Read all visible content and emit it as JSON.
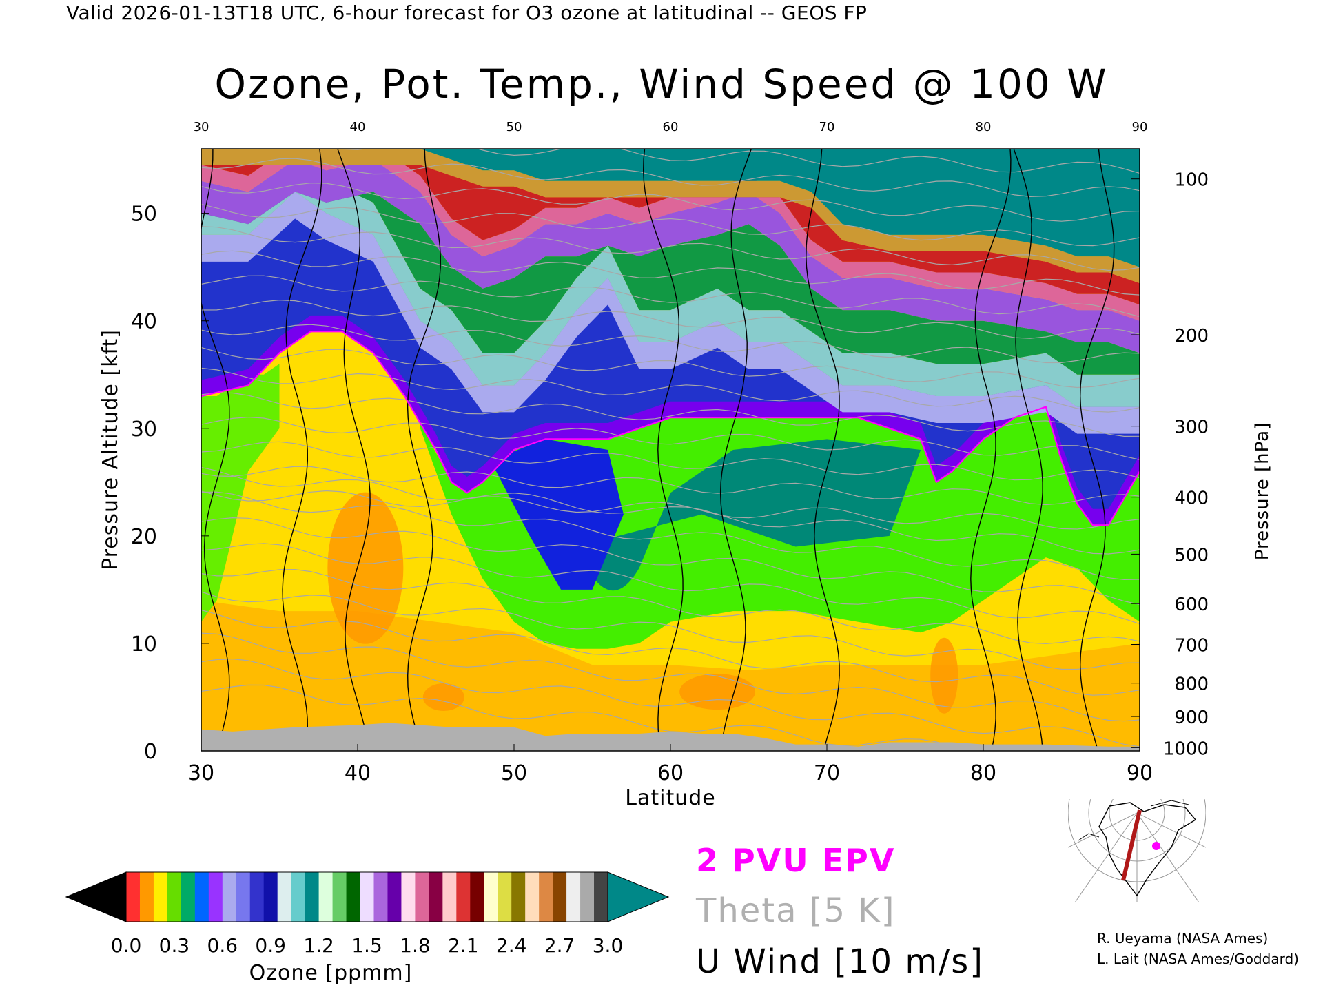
{
  "header": "Valid 2026-01-13T18 UTC, 6-hour forecast for O3 ozone at latitudinal -- GEOS FP",
  "title": "Ozone, Pot. Temp., Wind Speed @ 100 W",
  "legend": {
    "epv": "2 PVU EPV",
    "theta": "Theta [5 K]",
    "wind": "U Wind [10 m/s]"
  },
  "colorbar": {
    "label": "Ozone [ppmm]",
    "ticks": [
      "0.0",
      "0.3",
      "0.6",
      "0.9",
      "1.2",
      "1.5",
      "1.8",
      "2.1",
      "2.4",
      "2.7",
      "3.0"
    ],
    "colors": [
      "#000000",
      "#ff3030",
      "#ff9900",
      "#ffee00",
      "#66dd00",
      "#00aa66",
      "#0066ff",
      "#9933ff",
      "#aaaaee",
      "#7777ee",
      "#3333cc",
      "#1111aa",
      "#ddeeee",
      "#66cccc",
      "#008888",
      "#ddffdd",
      "#66cc66",
      "#006600",
      "#eeddff",
      "#aa66dd",
      "#6600aa",
      "#ffddee",
      "#dd6699",
      "#880044",
      "#ffcccc",
      "#dd3333",
      "#770000",
      "#ffffcc",
      "#dddd44",
      "#887700",
      "#ffddbb",
      "#dd8844",
      "#884400",
      "#eeeeee",
      "#aaaaaa",
      "#444444",
      "#008888"
    ]
  },
  "credits": [
    "R. Ueyama (NASA Ames)",
    "L. Lait (NASA Ames/Goddard)"
  ],
  "chart_data": {
    "type": "heatmap",
    "xlabel": "Latitude",
    "ylabel": "Pressure Altitude [kft]",
    "ylabel_right": "Pressure [hPa]",
    "xlim": [
      30,
      90
    ],
    "ylim": [
      0,
      56
    ],
    "x_ticks": [
      "30",
      "40",
      "50",
      "60",
      "70",
      "80",
      "90"
    ],
    "y_ticks": [
      "0",
      "10",
      "20",
      "30",
      "40",
      "50"
    ],
    "pressure_ticks": [
      {
        "label": "100",
        "kft": 53.2
      },
      {
        "label": "200",
        "kft": 38.7
      },
      {
        "label": "300",
        "kft": 30.2
      },
      {
        "label": "400",
        "kft": 23.6
      },
      {
        "label": "500",
        "kft": 18.3
      },
      {
        "label": "600",
        "kft": 13.7
      },
      {
        "label": "700",
        "kft": 9.9
      },
      {
        "label": "800",
        "kft": 6.3
      },
      {
        "label": "900",
        "kft": 3.2
      },
      {
        "label": "1000",
        "kft": 0.3
      }
    ],
    "tropopause_2pvu_kft": {
      "latitude": [
        30,
        33,
        35,
        37,
        39,
        41,
        43,
        45,
        46,
        47,
        48,
        50,
        52,
        54,
        56,
        58,
        60,
        62,
        64,
        66,
        68,
        70,
        72,
        74,
        76,
        77,
        78,
        80,
        82,
        84,
        85,
        86,
        87,
        88,
        90
      ],
      "kft": [
        33,
        34,
        37,
        39,
        39,
        37,
        33,
        28,
        25,
        24,
        25,
        28,
        29,
        29,
        29,
        30,
        31,
        31,
        31,
        31,
        31,
        31,
        31,
        30,
        29,
        25,
        26,
        29,
        31,
        32,
        27,
        23,
        21,
        21,
        26
      ]
    },
    "stratosphere_bands_kft": {
      "latitude": [
        30,
        33,
        36,
        38,
        41,
        44,
        46,
        48,
        50,
        52,
        54,
        56,
        58,
        60,
        63,
        65,
        67,
        69,
        71,
        74,
        77,
        80,
        84,
        86,
        88,
        90
      ],
      "band_0_9ppmm": [
        48,
        48,
        52,
        50,
        48,
        40,
        38,
        34,
        34,
        37,
        41,
        44,
        38,
        38,
        40,
        38,
        38,
        36,
        34,
        34,
        33,
        33,
        34,
        32,
        32,
        32
      ],
      "band_1_5ppmm": [
        53,
        52,
        55,
        54,
        55,
        52,
        48,
        46,
        47,
        49,
        49,
        50,
        49,
        50,
        51,
        52,
        50,
        46,
        44,
        44,
        43,
        43,
        42,
        41,
        41,
        40
      ],
      "band_3_0ppmm": [
        56,
        56,
        56,
        56,
        56,
        56,
        55,
        54,
        54,
        53,
        53,
        53,
        53,
        53,
        53,
        53,
        53,
        52,
        49,
        48,
        48,
        48,
        47,
        46,
        46,
        45
      ]
    },
    "surface_kft": {
      "latitude": [
        30,
        32,
        34,
        36,
        38,
        40,
        42,
        44,
        46,
        48,
        50,
        52,
        54,
        56,
        58,
        60,
        62,
        64,
        66,
        68,
        70,
        72,
        74,
        76,
        78,
        80,
        84,
        88,
        90
      ],
      "kft": [
        2,
        1.8,
        2,
        2.2,
        2.3,
        2.4,
        2.6,
        2.4,
        2.2,
        2.2,
        2.2,
        1.4,
        1.6,
        1.6,
        1.6,
        1.8,
        1.6,
        1.6,
        1.2,
        0.6,
        0.6,
        0.4,
        0.8,
        0.8,
        0.8,
        0.6,
        0.6,
        0.4,
        0.4
      ]
    },
    "u_wind_10ms_jets_latitude": [
      31,
      36,
      40,
      44,
      60,
      64,
      70,
      80,
      83,
      87
    ]
  }
}
